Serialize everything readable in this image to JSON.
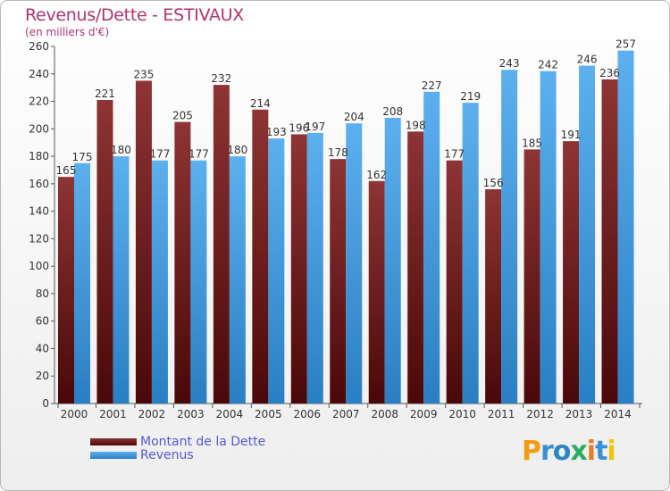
{
  "header": {
    "title": "Revenus/Dette - ESTIVAUX",
    "subtitle": "(en milliers d'€)"
  },
  "colors": {
    "debt": "#7a2222",
    "revenue": "#3f95d9",
    "title": "#b0336e",
    "legend_text": "#5559d6"
  },
  "chart_data": {
    "type": "bar",
    "title": "Revenus/Dette - ESTIVAUX",
    "ylabel": "(en milliers d'€)",
    "ylim": [
      0,
      260
    ],
    "ytick_step": 20,
    "grid": false,
    "legend_position": "bottom-left",
    "categories": [
      "2000",
      "2001",
      "2002",
      "2003",
      "2004",
      "2005",
      "2006",
      "2007",
      "2008",
      "2009",
      "2010",
      "2011",
      "2012",
      "2013",
      "2014"
    ],
    "series": [
      {
        "name": "Montant de la Dette",
        "values": [
          165,
          221,
          235,
          205,
          232,
          214,
          196,
          178,
          162,
          198,
          177,
          156,
          185,
          191,
          236
        ]
      },
      {
        "name": "Revenus",
        "values": [
          175,
          180,
          177,
          177,
          180,
          193,
          197,
          204,
          208,
          227,
          219,
          243,
          242,
          246,
          257
        ]
      }
    ]
  },
  "legend": {
    "items": [
      "Montant de la Dette",
      "Revenus"
    ]
  },
  "logo": {
    "letters": [
      "P",
      "r",
      "o",
      "x",
      "i",
      "t",
      "i"
    ],
    "colors": [
      "#f39c12",
      "#3a8fd6",
      "#2e86c1",
      "#27ae60",
      "#e67e22",
      "#3a8fd6",
      "#f1c40f"
    ]
  }
}
